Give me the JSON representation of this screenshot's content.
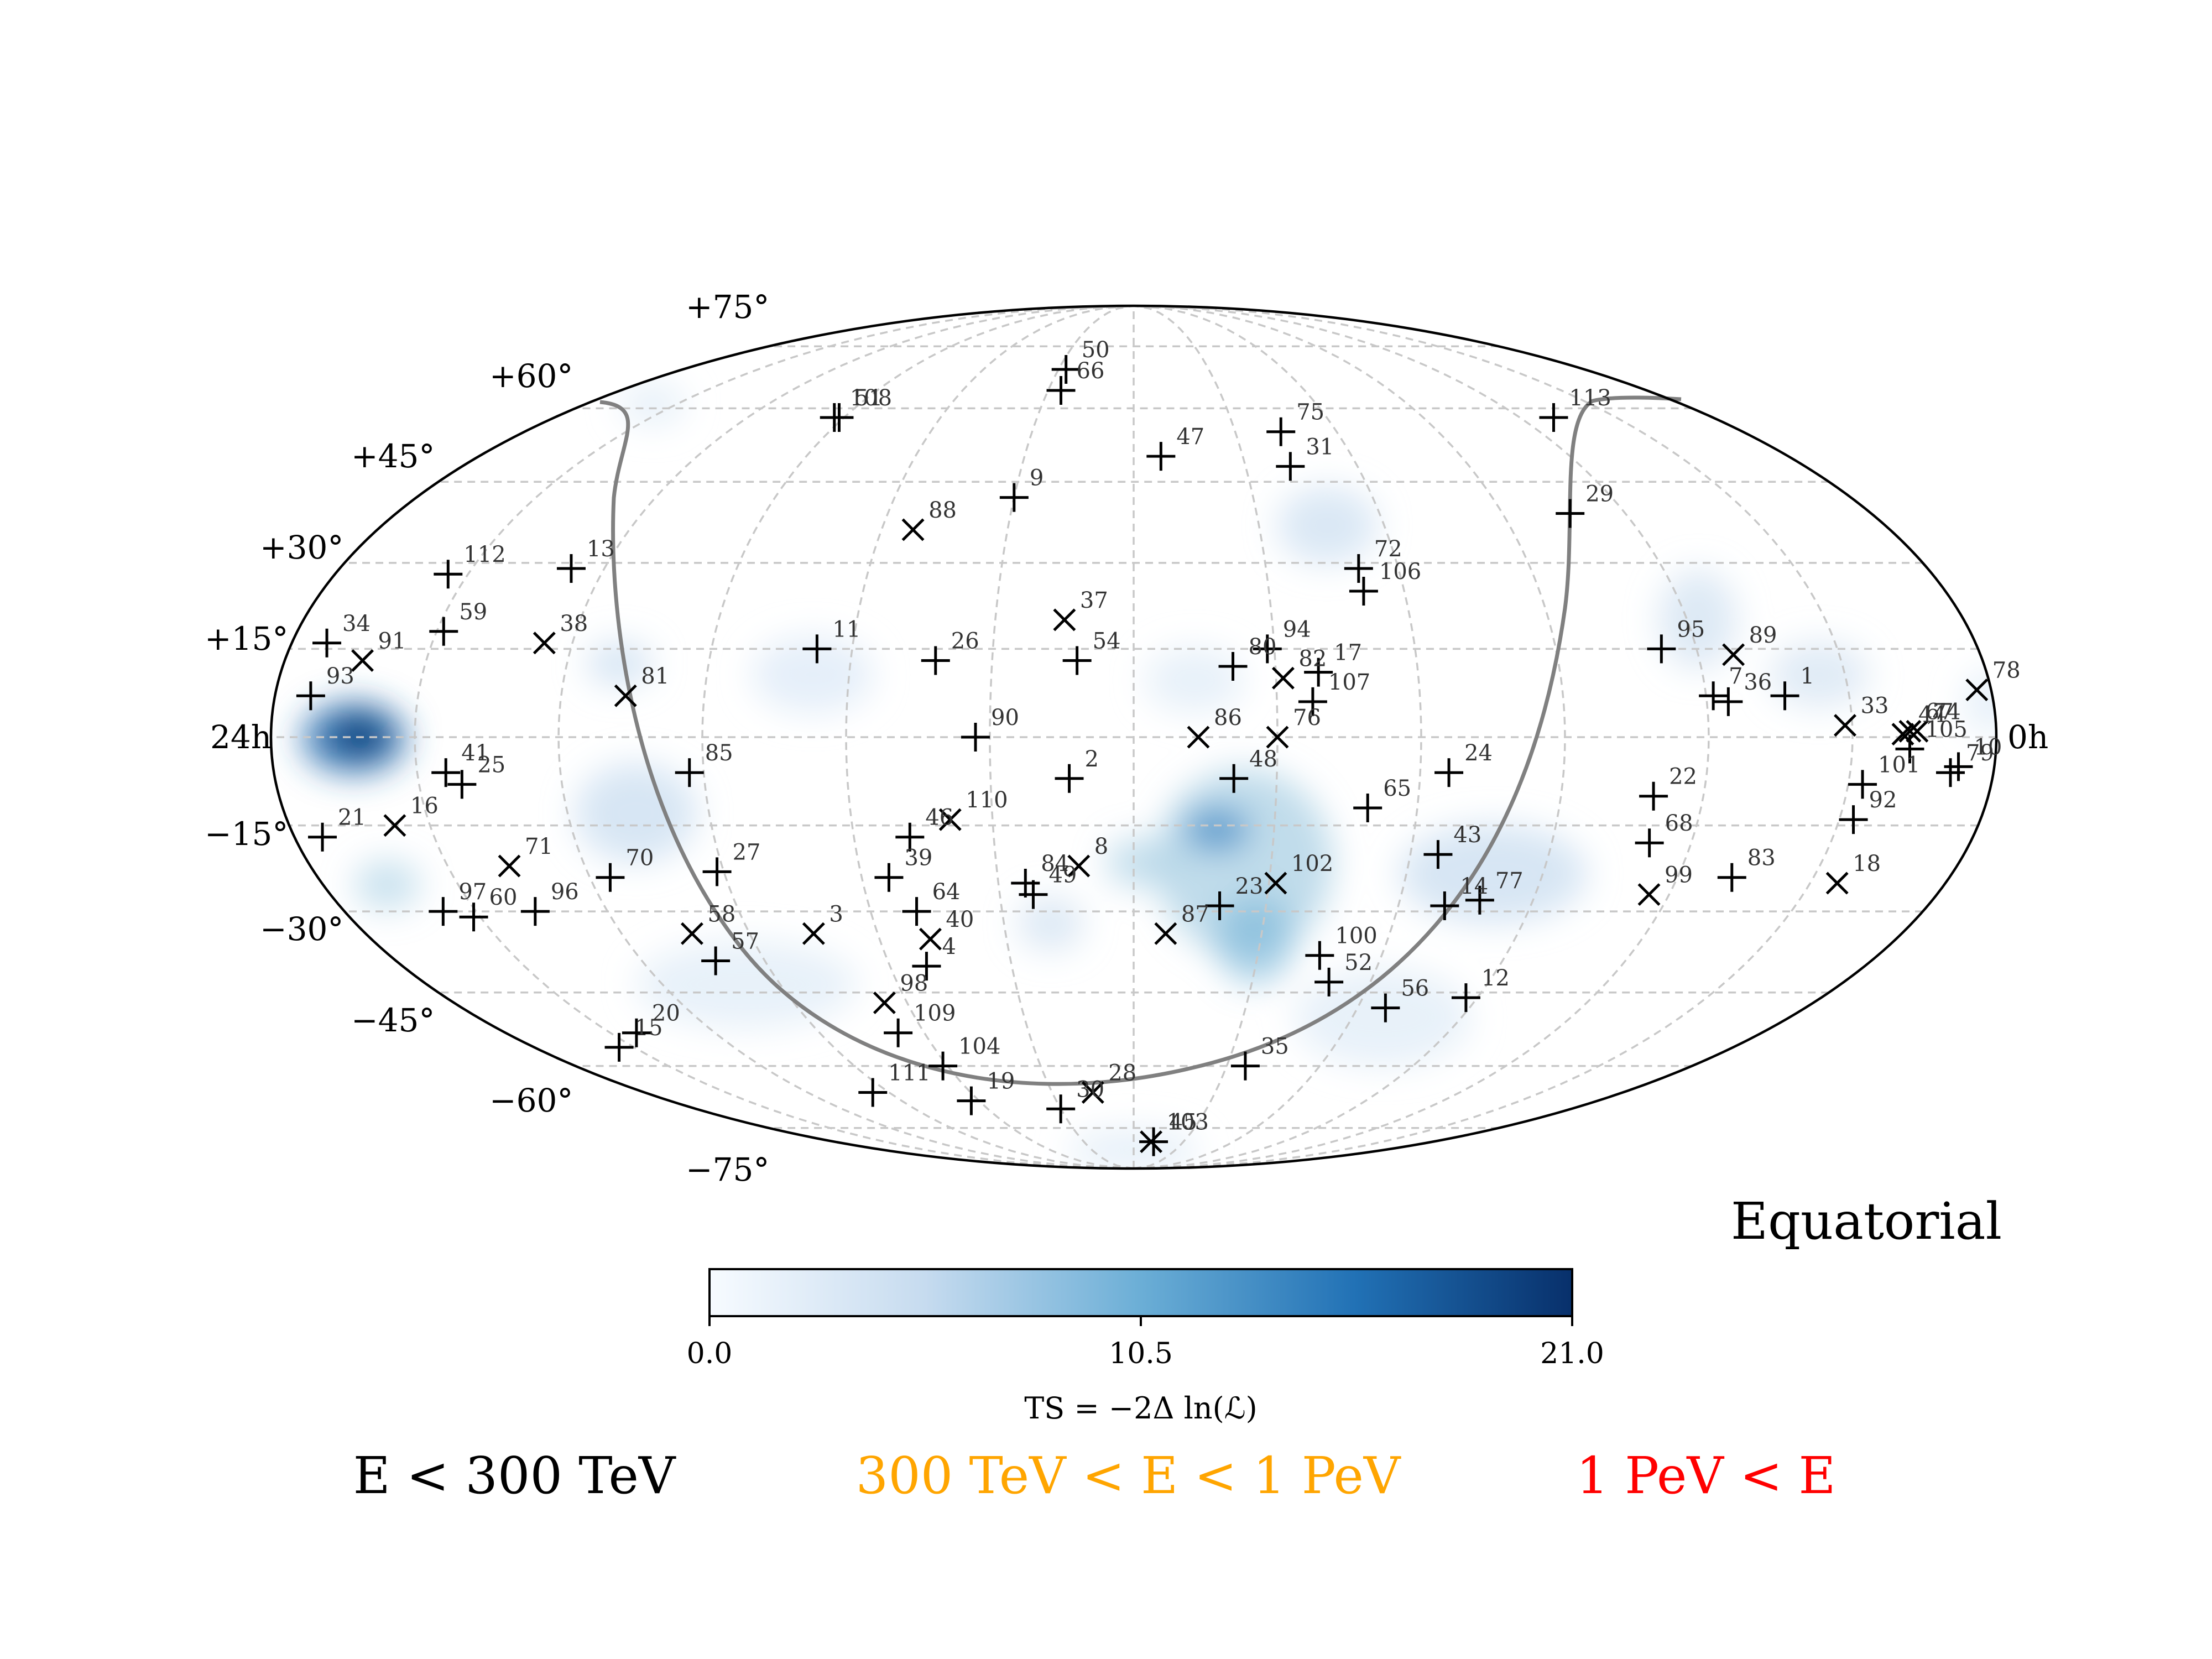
{
  "chart_data": {
    "type": "scatter",
    "projection": "mollweide",
    "frame_label": "Equatorial",
    "ra_labels": {
      "left": "24h",
      "right": "0h"
    },
    "dec_labels": [
      "+75°",
      "+60°",
      "+45°",
      "+30°",
      "+15°",
      "−15°",
      "−30°",
      "−45°",
      "−60°",
      "−75°"
    ],
    "colorbar": {
      "label": "TS = −2Δ ln(ℒ)",
      "ticks": [
        "0.0",
        "10.5",
        "21.0"
      ],
      "range": [
        0,
        21
      ],
      "colormap": [
        "#f7fbff",
        "#c6dbef",
        "#6baed6",
        "#2171b5",
        "#08306b"
      ]
    },
    "legend": {
      "low": {
        "text": "E < 300 TeV",
        "color": "#000000"
      },
      "mid": {
        "text": "300 TeV < E < 1 PeV",
        "color": "#ffa500"
      },
      "high": {
        "text": "1 PeV < E",
        "color": "#ff0000"
      }
    },
    "category_colors": {
      "low": "#333333",
      "mid": "#ffa500",
      "high": "#ff0000"
    },
    "marker_types": {
      "plus": "+",
      "cross": "×"
    },
    "points": [
      {
        "id": "1",
        "ra": 21.1,
        "dec": 7,
        "marker": "plus",
        "cat": "low"
      },
      {
        "id": "2",
        "ra": 11.1,
        "dec": -7,
        "marker": "plus",
        "cat": "low"
      },
      {
        "id": "3",
        "ra": 7.0,
        "dec": -34,
        "marker": "cross",
        "cat": "low"
      },
      {
        "id": "4",
        "ra": 8.6,
        "dec": -40,
        "marker": "plus",
        "cat": "low"
      },
      {
        "id": "8",
        "ra": 11.2,
        "dec": -22,
        "marker": "cross",
        "cat": "low"
      },
      {
        "id": "9",
        "ra": 10.0,
        "dec": 42,
        "marker": "plus",
        "cat": "low"
      },
      {
        "id": "10",
        "ra": 23.5,
        "dec": -5,
        "marker": "plus",
        "cat": "low"
      },
      {
        "id": "11",
        "ra": 7.5,
        "dec": 15,
        "marker": "plus",
        "cat": "low"
      },
      {
        "id": "12",
        "ra": 17.8,
        "dec": -46,
        "marker": "plus",
        "cat": "low"
      },
      {
        "id": "13",
        "ra": 3.5,
        "dec": 29,
        "marker": "plus",
        "cat": "low"
      },
      {
        "id": "14",
        "ra": 16.7,
        "dec": -29,
        "marker": "plus",
        "cat": "high"
      },
      {
        "id": "15",
        "ra": 1.7,
        "dec": -56,
        "marker": "plus",
        "cat": "low"
      },
      {
        "id": "16",
        "ra": 1.5,
        "dec": -15,
        "marker": "cross",
        "cat": "low"
      },
      {
        "id": "17",
        "ra": 14.6,
        "dec": 11,
        "marker": "plus",
        "cat": "low"
      },
      {
        "id": "19",
        "ra": 7.8,
        "dec": -68,
        "marker": "plus",
        "cat": "low"
      },
      {
        "id": "20",
        "ra": 2.5,
        "dec": -53,
        "marker": "plus",
        "cat": "high"
      },
      {
        "id": "21",
        "ra": 0.4,
        "dec": -17,
        "marker": "plus",
        "cat": "low"
      },
      {
        "id": "22",
        "ra": 19.3,
        "dec": -10,
        "marker": "plus",
        "cat": "low"
      },
      {
        "id": "23",
        "ra": 13.3,
        "dec": -29,
        "marker": "plus",
        "cat": "low"
      },
      {
        "id": "24",
        "ra": 16.4,
        "dec": -6,
        "marker": "plus",
        "cat": "low"
      },
      {
        "id": "25",
        "ra": 2.6,
        "dec": -8,
        "marker": "plus",
        "cat": "low"
      },
      {
        "id": "26",
        "ra": 9.2,
        "dec": 13,
        "marker": "plus",
        "cat": "low"
      },
      {
        "id": "27",
        "ra": 5.9,
        "dec": -23,
        "marker": "plus",
        "cat": "low"
      },
      {
        "id": "28",
        "ra": 11.0,
        "dec": -66,
        "marker": "cross",
        "cat": "low"
      },
      {
        "id": "29",
        "ra": 19.1,
        "dec": 39,
        "marker": "plus",
        "cat": "low"
      },
      {
        "id": "30",
        "ra": 10.0,
        "dec": -70,
        "marker": "plus",
        "cat": "low"
      },
      {
        "id": "31",
        "ra": 14.8,
        "dec": 48,
        "marker": "plus",
        "cat": "low"
      },
      {
        "id": "33",
        "ra": 21.9,
        "dec": 2,
        "marker": "cross",
        "cat": "mid"
      },
      {
        "id": "34",
        "ra": 0.5,
        "dec": 16,
        "marker": "plus",
        "cat": "low"
      },
      {
        "id": "35",
        "ra": 14.4,
        "dec": -60,
        "marker": "plus",
        "cat": "high"
      },
      {
        "id": "36",
        "ra": 20.3,
        "dec": 6,
        "marker": "plus",
        "cat": "low"
      },
      {
        "id": "37",
        "ra": 11.0,
        "dec": 20,
        "marker": "cross",
        "cat": "low"
      },
      {
        "id": "38",
        "ra": 3.6,
        "dec": 16,
        "marker": "cross",
        "cat": "low"
      },
      {
        "id": "39",
        "ra": 8.4,
        "dec": -24,
        "marker": "plus",
        "cat": "low"
      },
      {
        "id": "40",
        "ra": 8.8,
        "dec": -35,
        "marker": "cross",
        "cat": "low"
      },
      {
        "id": "41",
        "ra": 2.4,
        "dec": -6,
        "marker": "plus",
        "cat": "low"
      },
      {
        "id": "43",
        "ra": 16.4,
        "dec": -20,
        "marker": "plus",
        "cat": "low"
      },
      {
        "id": "44",
        "ra": 22.7,
        "dec": 0.5,
        "marker": "cross",
        "cat": "low"
      },
      {
        "id": "45",
        "ra": 12.8,
        "dec": -79,
        "marker": "plus",
        "cat": "mid"
      },
      {
        "id": "46",
        "ra": 8.8,
        "dec": -17,
        "marker": "plus",
        "cat": "low"
      },
      {
        "id": "47",
        "ra": 12.5,
        "dec": 50,
        "marker": "plus",
        "cat": "low"
      },
      {
        "id": "48",
        "ra": 13.4,
        "dec": -7,
        "marker": "plus",
        "cat": "low"
      },
      {
        "id": "49",
        "ra": 10.5,
        "dec": -27,
        "marker": "plus",
        "cat": "low"
      },
      {
        "id": "50",
        "ra": 10.2,
        "dec": 69,
        "marker": "plus",
        "cat": "low"
      },
      {
        "id": "51",
        "ra": 5.9,
        "dec": 58,
        "marker": "plus",
        "cat": "low"
      },
      {
        "id": "52",
        "ra": 15.3,
        "dec": -43,
        "marker": "plus",
        "cat": "low"
      },
      {
        "id": "54",
        "ra": 11.2,
        "dec": 13,
        "marker": "plus",
        "cat": "low"
      },
      {
        "id": "56",
        "ra": 16.5,
        "dec": -48,
        "marker": "plus",
        "cat": "low"
      },
      {
        "id": "57",
        "ra": 5.2,
        "dec": -39,
        "marker": "plus",
        "cat": "low"
      },
      {
        "id": "58",
        "ra": 5.1,
        "dec": -34,
        "marker": "cross",
        "cat": "low"
      },
      {
        "id": "59",
        "ra": 2.1,
        "dec": 18,
        "marker": "plus",
        "cat": "low"
      },
      {
        "id": "60",
        "ra": 1.9,
        "dec": -31,
        "marker": "plus",
        "cat": "low"
      },
      {
        "id": "64",
        "ra": 8.7,
        "dec": -30,
        "marker": "plus",
        "cat": "low"
      },
      {
        "id": "65",
        "ra": 15.3,
        "dec": -12,
        "marker": "plus",
        "cat": "low"
      },
      {
        "id": "66",
        "ra": 10.3,
        "dec": 64,
        "marker": "plus",
        "cat": "low"
      },
      {
        "id": "67",
        "ra": 22.8,
        "dec": 1,
        "marker": "cross",
        "cat": "low"
      },
      {
        "id": "68",
        "ra": 19.4,
        "dec": -18,
        "marker": "plus",
        "cat": "low"
      },
      {
        "id": "70",
        "ra": 4.3,
        "dec": -24,
        "marker": "plus",
        "cat": "low"
      },
      {
        "id": "71",
        "ra": 2.9,
        "dec": -22,
        "marker": "cross",
        "cat": "low"
      },
      {
        "id": "72",
        "ra": 15.4,
        "dec": 29,
        "marker": "plus",
        "cat": "low"
      },
      {
        "id": "74",
        "ra": 22.9,
        "dec": 1,
        "marker": "cross",
        "cat": "low"
      },
      {
        "id": "75",
        "ra": 14.9,
        "dec": 55,
        "marker": "plus",
        "cat": "low"
      },
      {
        "id": "76",
        "ra": 14.0,
        "dec": 0,
        "marker": "cross",
        "cat": "low"
      },
      {
        "id": "77",
        "ra": 17.2,
        "dec": -28,
        "marker": "plus",
        "cat": "low"
      },
      {
        "id": "78",
        "ra": 23.8,
        "dec": 8,
        "marker": "cross",
        "cat": "low"
      },
      {
        "id": "79",
        "ra": 23.4,
        "dec": -6,
        "marker": "plus",
        "cat": "low"
      },
      {
        "id": "80",
        "ra": 13.4,
        "dec": 12,
        "marker": "plus",
        "cat": "low"
      },
      {
        "id": "81",
        "ra": 4.9,
        "dec": 7,
        "marker": "cross",
        "cat": "low"
      },
      {
        "id": "82",
        "ra": 14.1,
        "dec": 10,
        "marker": "cross",
        "cat": "low"
      },
      {
        "id": "83",
        "ra": 20.8,
        "dec": -24,
        "marker": "plus",
        "cat": "low"
      },
      {
        "id": "84",
        "ra": 10.4,
        "dec": -25,
        "marker": "plus",
        "cat": "low"
      },
      {
        "id": "85",
        "ra": 5.8,
        "dec": -6,
        "marker": "plus",
        "cat": "mid"
      },
      {
        "id": "86",
        "ra": 12.9,
        "dec": 0,
        "marker": "cross",
        "cat": "low"
      },
      {
        "id": "87",
        "ra": 12.5,
        "dec": -34,
        "marker": "cross",
        "cat": "low"
      },
      {
        "id": "88",
        "ra": 8.5,
        "dec": 36,
        "marker": "cross",
        "cat": "low"
      },
      {
        "id": "89",
        "ra": 20.5,
        "dec": 14,
        "marker": "cross",
        "cat": "low"
      },
      {
        "id": "90",
        "ra": 9.8,
        "dec": 0,
        "marker": "plus",
        "cat": "low"
      },
      {
        "id": "91",
        "ra": 1.1,
        "dec": 13,
        "marker": "cross",
        "cat": "low"
      },
      {
        "id": "92",
        "ra": 22.2,
        "dec": -14,
        "marker": "plus",
        "cat": "low"
      },
      {
        "id": "93",
        "ra": 0.5,
        "dec": 7,
        "marker": "plus",
        "cat": "low"
      },
      {
        "id": "94",
        "ra": 13.9,
        "dec": 15,
        "marker": "plus",
        "cat": "low"
      },
      {
        "id": "95",
        "ra": 19.5,
        "dec": 15,
        "marker": "plus",
        "cat": "low"
      },
      {
        "id": "96",
        "ra": 2.9,
        "dec": -30,
        "marker": "plus",
        "cat": "low"
      },
      {
        "id": "97",
        "ra": 1.5,
        "dec": -30,
        "marker": "plus",
        "cat": "low"
      },
      {
        "id": "98",
        "ra": 7.6,
        "dec": -47,
        "marker": "cross",
        "cat": "low"
      },
      {
        "id": "99",
        "ra": 19.7,
        "dec": -27,
        "marker": "cross",
        "cat": "low"
      },
      {
        "id": "100",
        "ra": 15.0,
        "dec": -38,
        "marker": "plus",
        "cat": "low"
      },
      {
        "id": "101",
        "ra": 22.2,
        "dec": -8,
        "marker": "plus",
        "cat": "low"
      },
      {
        "id": "102",
        "ra": 14.1,
        "dec": -25,
        "marker": "cross",
        "cat": "low"
      },
      {
        "id": "103",
        "ra": 12.7,
        "dec": -79,
        "marker": "cross",
        "cat": "low"
      },
      {
        "id": "104",
        "ra": 7.9,
        "dec": -60,
        "marker": "plus",
        "cat": "low"
      },
      {
        "id": "105",
        "ra": 22.8,
        "dec": -2,
        "marker": "plus",
        "cat": "low"
      },
      {
        "id": "106",
        "ra": 15.4,
        "dec": 25,
        "marker": "plus",
        "cat": "low"
      },
      {
        "id": "107",
        "ra": 14.5,
        "dec": 6,
        "marker": "plus",
        "cat": "mid"
      },
      {
        "id": "108",
        "ra": 5.8,
        "dec": 58,
        "marker": "plus",
        "cat": "low"
      },
      {
        "id": "109",
        "ra": 7.5,
        "dec": -53,
        "marker": "plus",
        "cat": "low"
      },
      {
        "id": "110",
        "ra": 9.4,
        "dec": -14,
        "marker": "cross",
        "cat": "low"
      },
      {
        "id": "111",
        "ra": 5.6,
        "dec": -66,
        "marker": "plus",
        "cat": "low"
      },
      {
        "id": "112",
        "ra": 1.7,
        "dec": 28,
        "marker": "plus",
        "cat": "low"
      },
      {
        "id": "113",
        "ra": 20.7,
        "dec": 58,
        "marker": "plus",
        "cat": "low"
      },
      {
        "id": "18",
        "ra": 22.4,
        "dec": -25,
        "marker": "cross",
        "cat": "low"
      },
      {
        "id": "7",
        "ra": 20.1,
        "dec": 7,
        "marker": "plus",
        "cat": "low"
      }
    ]
  }
}
